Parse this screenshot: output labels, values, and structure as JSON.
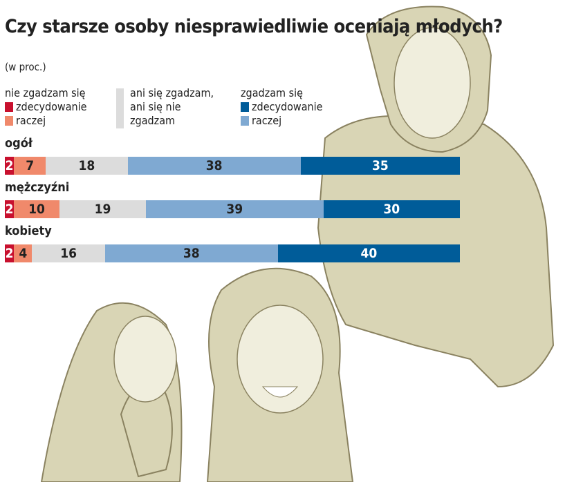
{
  "chart_data": {
    "type": "bar",
    "orientation": "horizontal-stacked",
    "title": "Czy starsze osoby niesprawiedliwie oceniają młodych?",
    "subtitle": "(w proc.)",
    "legend": {
      "groups": [
        {
          "heading": "nie zgadzam się",
          "items": [
            {
              "label": "zdecydowanie",
              "color": "#c8102e"
            },
            {
              "label": "raczej",
              "color": "#f0896b"
            }
          ]
        },
        {
          "heading": "",
          "items": [
            {
              "label_lines": [
                "ani się zgadzam,",
                "ani się nie",
                "zgadzam"
              ],
              "color": "#dcdcdc"
            }
          ]
        },
        {
          "heading": "zgadzam się",
          "items": [
            {
              "label": "zdecydowanie",
              "color": "#005c99"
            },
            {
              "label": "raczej",
              "color": "#7fa9d2"
            }
          ]
        }
      ]
    },
    "series_order": [
      "zdecydowanie nie",
      "raczej nie",
      "ani-ani",
      "raczej tak",
      "zdecydowanie tak"
    ],
    "series_colors": [
      "#c8102e",
      "#f0896b",
      "#dcdcdc",
      "#7fa9d2",
      "#005c99"
    ],
    "label_colors": [
      "#ffffff",
      "#222222",
      "#222222",
      "#222222",
      "#ffffff"
    ],
    "categories": [
      "ogół",
      "mężczyźni",
      "kobiety"
    ],
    "values": [
      [
        2,
        7,
        18,
        38,
        35
      ],
      [
        2,
        10,
        19,
        39,
        30
      ],
      [
        2,
        4,
        16,
        38,
        40
      ]
    ],
    "xlim": [
      0,
      100
    ]
  }
}
